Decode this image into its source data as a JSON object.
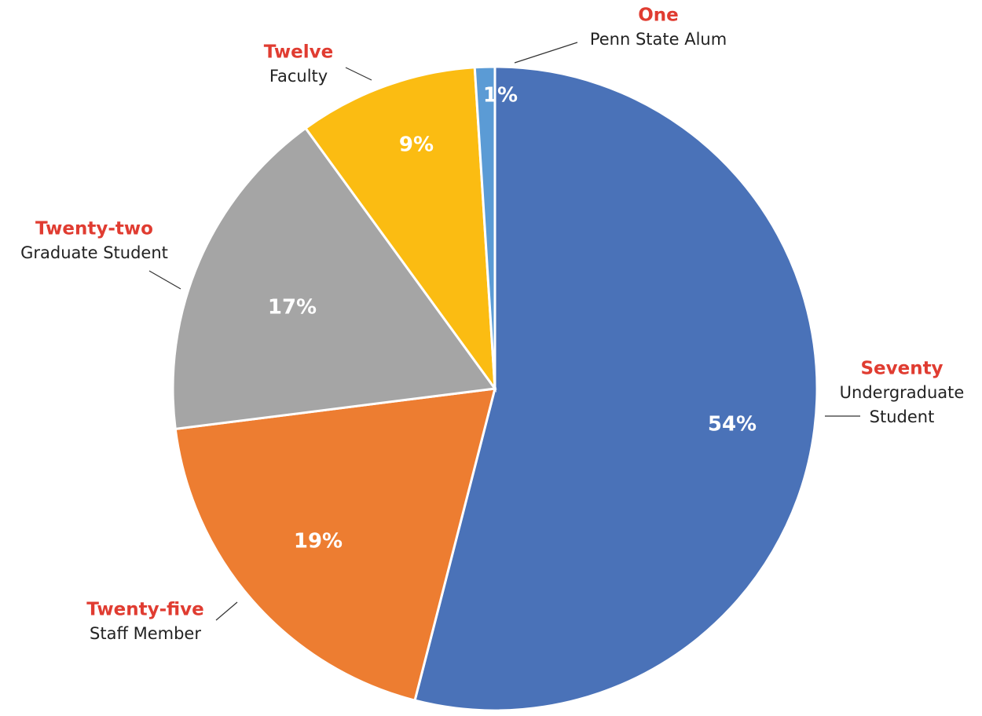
{
  "chart_data": {
    "type": "pie",
    "categories": [
      "Undergraduate Student",
      "Staff Member",
      "Graduate Student",
      "Faculty",
      "Penn State Alum"
    ],
    "category_lines": [
      [
        "Undergraduate",
        "Student"
      ],
      [
        "Staff Member"
      ],
      [
        "Graduate Student"
      ],
      [
        "Faculty"
      ],
      [
        "Penn State Alum"
      ]
    ],
    "count_labels": [
      "Seventy",
      "Twenty-five",
      "Twenty-two",
      "Twelve",
      "One"
    ],
    "values": [
      54,
      19,
      17,
      9,
      1
    ],
    "value_labels": [
      "54%",
      "19%",
      "17%",
      "9%",
      "1%"
    ],
    "colors": [
      "#4a72b8",
      "#ed7d31",
      "#a5a5a5",
      "#fbbc12",
      "#5b9bd5"
    ]
  }
}
